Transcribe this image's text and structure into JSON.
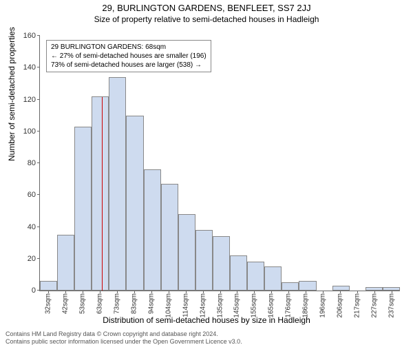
{
  "title": "29, BURLINGTON GARDENS, BENFLEET, SS7 2JJ",
  "subtitle": "Size of property relative to semi-detached houses in Hadleigh",
  "ylabel": "Number of semi-detached properties",
  "xlabel": "Distribution of semi-detached houses by size in Hadleigh",
  "info": {
    "line1": "29 BURLINGTON GARDENS: 68sqm",
    "line2": "← 27% of semi-detached houses are smaller (196)",
    "line3": "73% of semi-detached houses are larger (538) →"
  },
  "footer": {
    "line1": "Contains HM Land Registry data © Crown copyright and database right 2024.",
    "line2": "Contains public sector information licensed under the Open Government Licence v3.0."
  },
  "chart": {
    "type": "histogram",
    "ylim": [
      0,
      160
    ],
    "ytick_step": 20,
    "bar_fill": "#cedbef",
    "bar_stroke": "#888888",
    "marker": {
      "x_index": 3.6,
      "color": "#cc0000",
      "height_pct": 76
    },
    "categories": [
      "32sqm",
      "42sqm",
      "53sqm",
      "63sqm",
      "73sqm",
      "83sqm",
      "94sqm",
      "104sqm",
      "114sqm",
      "124sqm",
      "135sqm",
      "145sqm",
      "155sqm",
      "165sqm",
      "176sqm",
      "186sqm",
      "196sqm",
      "206sqm",
      "217sqm",
      "227sqm",
      "237sqm"
    ],
    "values": [
      6,
      35,
      103,
      122,
      134,
      110,
      76,
      67,
      48,
      38,
      34,
      22,
      18,
      15,
      5,
      6,
      0,
      3,
      0,
      2,
      2
    ]
  }
}
